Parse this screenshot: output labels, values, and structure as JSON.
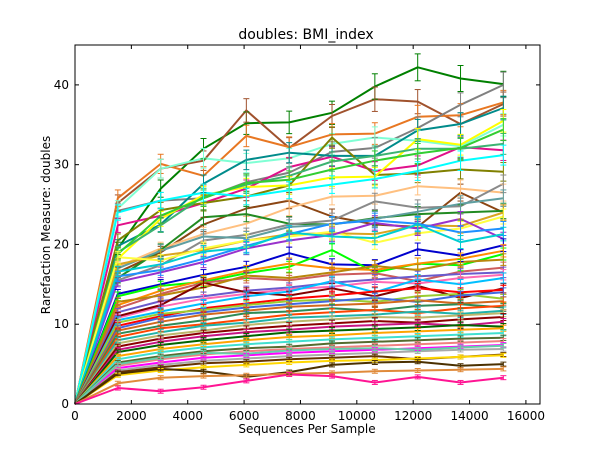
{
  "chart_data": {
    "type": "line",
    "title": "doubles: BMI_index",
    "xlabel": "Sequences Per Sample",
    "ylabel": "Rarefaction Measure: doubles",
    "xlim": [
      0,
      16500
    ],
    "ylim": [
      0,
      45
    ],
    "xticks": [
      0,
      2000,
      4000,
      6000,
      8000,
      10000,
      12000,
      14000,
      16000
    ],
    "yticks": [
      0,
      10,
      20,
      30,
      40
    ],
    "grid": false,
    "legend": "none",
    "error_bars": true,
    "x": [
      0,
      1520,
      3040,
      4560,
      6080,
      7600,
      9120,
      10640,
      12160,
      13680,
      15200
    ],
    "series": [
      {
        "color": "#008000",
        "values": [
          0,
          19.5,
          27.0,
          32.0,
          35.2,
          35.3,
          36.5,
          39.8,
          42.2,
          40.8,
          40.1
        ]
      },
      {
        "color": "#a0522d",
        "values": [
          0,
          25.2,
          29.5,
          30.5,
          36.8,
          32.1,
          36.1,
          38.2,
          37.9,
          35.1,
          37.6
        ]
      },
      {
        "color": "#e87722",
        "values": [
          0,
          25.8,
          30.1,
          28.6,
          33.6,
          32.2,
          33.8,
          33.9,
          36.0,
          36.2,
          37.8
        ]
      },
      {
        "color": "#808080",
        "values": [
          0,
          24.2,
          25.5,
          25.8,
          27.8,
          29.0,
          31.6,
          32.1,
          34.6,
          37.5,
          40.0
        ]
      },
      {
        "color": "#e0108a",
        "values": [
          0,
          22.4,
          23.6,
          25.2,
          27.0,
          29.7,
          31.0,
          29.2,
          29.9,
          32.2,
          31.8
        ]
      },
      {
        "color": "#7fffd4",
        "values": [
          0,
          24.5,
          29.5,
          30.8,
          30.2,
          30.8,
          32.6,
          33.4,
          33.0,
          32.3,
          35.0
        ]
      },
      {
        "color": "#008b8b",
        "values": [
          0,
          19.8,
          22.5,
          27.6,
          30.6,
          31.5,
          31.1,
          31.1,
          34.3,
          35.1,
          37.1
        ]
      },
      {
        "color": "#808000",
        "values": [
          0,
          20.5,
          24.3,
          25.2,
          26.0,
          27.4,
          33.4,
          28.7,
          28.9,
          29.4,
          29.1
        ]
      },
      {
        "color": "#ffff00",
        "values": [
          0,
          18.2,
          23.2,
          26.2,
          27.2,
          27.4,
          28.4,
          28.5,
          33.2,
          32.5,
          35.5
        ]
      },
      {
        "color": "#3cb371",
        "values": [
          0,
          19.0,
          22.4,
          26.0,
          27.5,
          28.6,
          30.4,
          31.1,
          32.0,
          32.0,
          32.6
        ]
      },
      {
        "color": "#32cd32",
        "values": [
          0,
          18.8,
          23.6,
          25.8,
          27.7,
          28.1,
          29.4,
          30.5,
          31.4,
          32.1,
          34.4
        ]
      },
      {
        "color": "#8b4513",
        "values": [
          0,
          16.5,
          19.0,
          22.5,
          24.5,
          25.5,
          23.5,
          22.5,
          22.2,
          26.5,
          24.0
        ]
      },
      {
        "color": "#ffc080",
        "values": [
          0,
          17.2,
          19.5,
          21.3,
          22.6,
          24.6,
          26.0,
          26.1,
          27.3,
          27.0,
          26.5
        ]
      },
      {
        "color": "#00ffff",
        "values": [
          0,
          24.0,
          25.5,
          26.5,
          26.0,
          26.8,
          27.5,
          28.2,
          29.2,
          30.5,
          31.2
        ]
      },
      {
        "color": "#228b22",
        "values": [
          0,
          15.8,
          19.3,
          23.4,
          23.8,
          22.6,
          22.5,
          23.3,
          23.8,
          24.0,
          24.2
        ]
      },
      {
        "color": "#8a8a8a",
        "values": [
          0,
          15.5,
          17.4,
          20.5,
          21.2,
          22.5,
          23.0,
          25.4,
          24.6,
          24.8,
          27.6
        ]
      },
      {
        "color": "#5f9ea0",
        "values": [
          0,
          17.0,
          19.2,
          21.0,
          20.8,
          22.2,
          22.5,
          23.2,
          24.1,
          25.1,
          25.8
        ]
      },
      {
        "color": "#daa520",
        "values": [
          0,
          17.5,
          18.6,
          19.3,
          20.5,
          21.3,
          21.4,
          21.3,
          22.4,
          22.3,
          24.0
        ]
      },
      {
        "color": "#ffff40",
        "values": [
          0,
          18.4,
          18.0,
          19.5,
          20.5,
          21.0,
          21.6,
          20.2,
          21.4,
          22.0,
          23.5
        ]
      },
      {
        "color": "#9932cc",
        "values": [
          0,
          15.3,
          16.5,
          17.8,
          19.5,
          20.5,
          21.2,
          22.7,
          22.0,
          23.2,
          20.7
        ]
      },
      {
        "color": "#1e90ff",
        "values": [
          0,
          16.0,
          16.8,
          18.2,
          19.8,
          21.3,
          22.6,
          23.0,
          22.6,
          21.5,
          22.0
        ]
      },
      {
        "color": "#00ced1",
        "values": [
          0,
          16.6,
          17.5,
          19.1,
          19.6,
          21.5,
          21.0,
          20.8,
          22.5,
          20.3,
          21.3
        ]
      },
      {
        "color": "#0000cd",
        "values": [
          0,
          13.8,
          15.0,
          16.2,
          17.2,
          18.9,
          17.5,
          17.4,
          19.4,
          18.6,
          19.9
        ]
      },
      {
        "color": "#00ff00",
        "values": [
          0,
          13.5,
          14.8,
          15.3,
          16.4,
          17.2,
          19.3,
          16.5,
          17.6,
          17.4,
          18.8
        ]
      },
      {
        "color": "#ff8c00",
        "values": [
          0,
          12.4,
          14.2,
          15.5,
          16.7,
          17.6,
          17.0,
          16.8,
          17.6,
          18.2,
          19.2
        ]
      },
      {
        "color": "#cd5c5c",
        "values": [
          0,
          12.0,
          13.8,
          15.2,
          15.8,
          15.5,
          16.2,
          16.4,
          15.4,
          16.6,
          17.1
        ]
      },
      {
        "color": "#b8860b",
        "values": [
          0,
          12.8,
          13.6,
          14.6,
          16.1,
          15.8,
          16.5,
          17.3,
          16.8,
          17.8,
          18.1
        ]
      },
      {
        "color": "#6a5acd",
        "values": [
          0,
          11.5,
          12.9,
          13.5,
          14.2,
          14.6,
          15.2,
          15.6,
          16.0,
          16.3,
          16.5
        ]
      },
      {
        "color": "#ff69b4",
        "values": [
          0,
          10.8,
          12.2,
          13.2,
          13.8,
          14.4,
          14.7,
          15.3,
          15.1,
          15.8,
          16.2
        ]
      },
      {
        "color": "#800000",
        "values": [
          0,
          11.0,
          12.4,
          15.2,
          14.0,
          13.6,
          14.5,
          13.5,
          14.8,
          13.3,
          14.5
        ]
      },
      {
        "color": "#00bfff",
        "values": [
          0,
          10.5,
          11.6,
          12.6,
          13.5,
          14.1,
          15.4,
          14.0,
          15.6,
          15.0,
          15.8
        ]
      },
      {
        "color": "#ff0000",
        "values": [
          0,
          9.8,
          11.0,
          12.0,
          12.6,
          13.2,
          13.6,
          14.1,
          14.5,
          14.0,
          14.3
        ]
      },
      {
        "color": "#9acd32",
        "values": [
          0,
          10.2,
          11.3,
          11.8,
          12.4,
          12.9,
          13.1,
          12.8,
          13.5,
          13.8,
          13.2
        ]
      },
      {
        "color": "#4169e1",
        "values": [
          0,
          9.5,
          10.8,
          11.5,
          12.1,
          12.5,
          12.9,
          13.3,
          12.8,
          13.6,
          14.0
        ]
      },
      {
        "color": "#d2691e",
        "values": [
          0,
          9.2,
          10.3,
          11.2,
          11.7,
          12.2,
          12.4,
          12.6,
          13.0,
          12.6,
          12.9
        ]
      },
      {
        "color": "#2e8b57",
        "values": [
          0,
          8.8,
          9.8,
          10.5,
          11.4,
          11.6,
          12.0,
          11.7,
          12.3,
          12.5,
          12.1
        ]
      },
      {
        "color": "#ff4500",
        "values": [
          0,
          8.4,
          9.5,
          10.0,
          10.6,
          11.2,
          11.5,
          11.8,
          11.4,
          12.0,
          12.3
        ]
      },
      {
        "color": "#20b2aa",
        "values": [
          0,
          8.0,
          9.0,
          9.8,
          10.2,
          10.8,
          11.0,
          11.2,
          11.6,
          11.3,
          11.7
        ]
      },
      {
        "color": "#bdb76b",
        "values": [
          0,
          7.6,
          8.6,
          9.2,
          9.9,
          10.3,
          10.6,
          10.9,
          10.8,
          11.1,
          11.4
        ]
      },
      {
        "color": "#8b0000",
        "values": [
          0,
          7.2,
          8.2,
          8.9,
          9.4,
          9.8,
          10.1,
          10.4,
          10.2,
          10.6,
          10.9
        ]
      },
      {
        "color": "#c71585",
        "values": [
          0,
          6.8,
          7.8,
          8.5,
          9.0,
          9.3,
          9.7,
          9.9,
          10.1,
          9.8,
          10.3
        ]
      },
      {
        "color": "#006400",
        "values": [
          0,
          6.5,
          7.4,
          8.0,
          8.5,
          9.0,
          9.2,
          9.4,
          9.6,
          9.9,
          9.7
        ]
      },
      {
        "color": "#ffa500",
        "values": [
          0,
          6.0,
          6.9,
          7.5,
          8.0,
          8.4,
          8.6,
          8.9,
          9.1,
          9.3,
          9.5
        ]
      },
      {
        "color": "#40e0d0",
        "values": [
          0,
          5.6,
          6.5,
          7.1,
          7.5,
          7.8,
          8.1,
          8.3,
          8.5,
          8.7,
          8.9
        ]
      },
      {
        "color": "#556b2f",
        "values": [
          0,
          5.2,
          6.0,
          6.6,
          7.0,
          7.2,
          7.6,
          7.8,
          8.0,
          8.2,
          8.3
        ]
      },
      {
        "color": "#f08080",
        "values": [
          0,
          4.8,
          5.6,
          6.2,
          6.6,
          6.9,
          7.1,
          7.3,
          7.5,
          7.7,
          7.9
        ]
      },
      {
        "color": "#ff00ff",
        "values": [
          0,
          4.5,
          5.2,
          5.8,
          6.1,
          6.4,
          6.6,
          6.8,
          7.0,
          7.2,
          7.4
        ]
      },
      {
        "color": "#a9a9a9",
        "values": [
          0,
          4.2,
          4.9,
          5.4,
          5.7,
          6.0,
          6.2,
          6.4,
          6.6,
          6.8,
          6.9
        ]
      },
      {
        "color": "#663300",
        "values": [
          0,
          4.0,
          4.6,
          5.1,
          5.3,
          5.6,
          5.8,
          6.0,
          5.6,
          5.9,
          6.2
        ]
      },
      {
        "color": "#66cdaa",
        "values": [
          0,
          5.0,
          5.8,
          6.4,
          6.3,
          6.7,
          6.9,
          7.0,
          6.8,
          7.1,
          7.3
        ]
      },
      {
        "color": "#ffd700",
        "values": [
          0,
          3.6,
          4.2,
          4.6,
          4.9,
          5.2,
          5.4,
          5.5,
          5.7,
          5.9,
          6.1
        ]
      },
      {
        "color": "#4b3000",
        "values": [
          0,
          3.8,
          4.4,
          4.1,
          3.4,
          4.0,
          4.9,
          5.2,
          5.3,
          4.8,
          5.0
        ]
      },
      {
        "color": "#e08a3a",
        "values": [
          0,
          2.6,
          3.3,
          3.5,
          3.6,
          3.8,
          3.9,
          4.1,
          4.2,
          4.3,
          4.4
        ]
      },
      {
        "color": "#ff1493",
        "values": [
          0,
          2.0,
          1.6,
          2.1,
          2.9,
          3.7,
          3.5,
          2.7,
          3.4,
          2.7,
          3.3
        ]
      }
    ]
  }
}
